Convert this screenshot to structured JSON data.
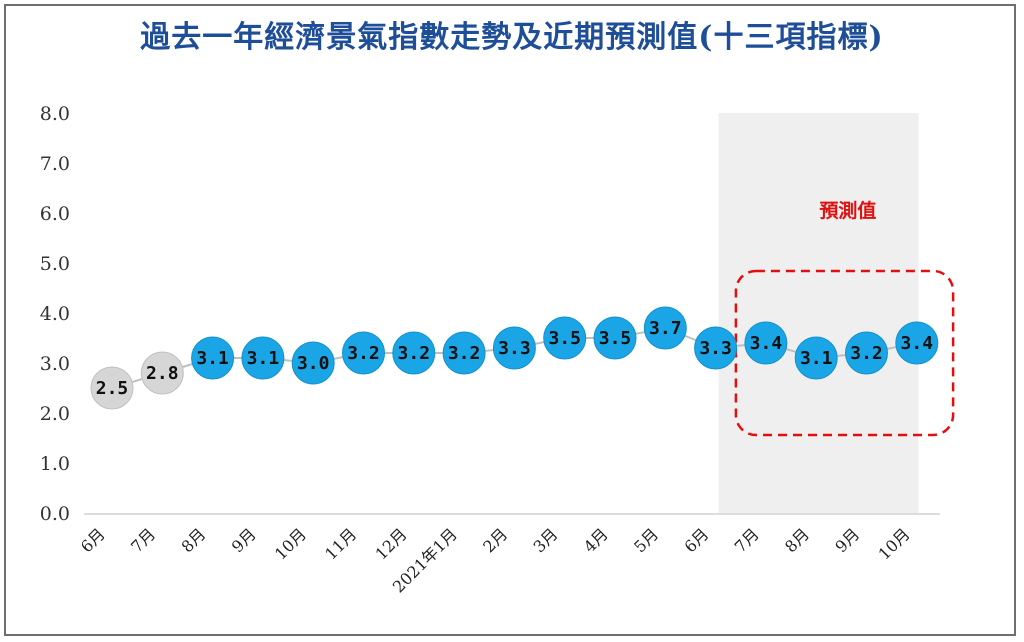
{
  "chart_data": {
    "type": "line",
    "title": "過去一年經濟景氣指數走勢及近期預測值(十三項指標)",
    "categories": [
      "6月",
      "7月",
      "8月",
      "9月",
      "10月",
      "11月",
      "12月",
      "2021年1月",
      "2月",
      "3月",
      "4月",
      "5月",
      "6月",
      "7月",
      "8月",
      "9月",
      "10月"
    ],
    "values": [
      2.5,
      2.8,
      3.1,
      3.1,
      3.0,
      3.2,
      3.2,
      3.2,
      3.3,
      3.5,
      3.5,
      3.7,
      3.3,
      3.4,
      3.1,
      3.2,
      3.4
    ],
    "value_labels": [
      "2.5",
      "2.8",
      "3.1",
      "3.1",
      "3.0",
      "3.2",
      "3.2",
      "3.2",
      "3.3",
      "3.5",
      "3.5",
      "3.7",
      "3.3",
      "3.4",
      "3.1",
      "3.2",
      "3.4"
    ],
    "y_ticks": [
      "0.0",
      "1.0",
      "2.0",
      "3.0",
      "4.0",
      "5.0",
      "6.0",
      "7.0",
      "8.0"
    ],
    "ylim": [
      0,
      8
    ],
    "grid": false,
    "gray_point_count": 2,
    "forecast_start_index": 13,
    "forecast_label": "預測值",
    "colors": {
      "title": "#1f4e99",
      "point_blue": "#1aa6e6",
      "point_gray": "#d6d6d6",
      "forecast_shade": "#efefef",
      "forecast_box": "#e01010",
      "line": "#bfbfbf"
    }
  }
}
